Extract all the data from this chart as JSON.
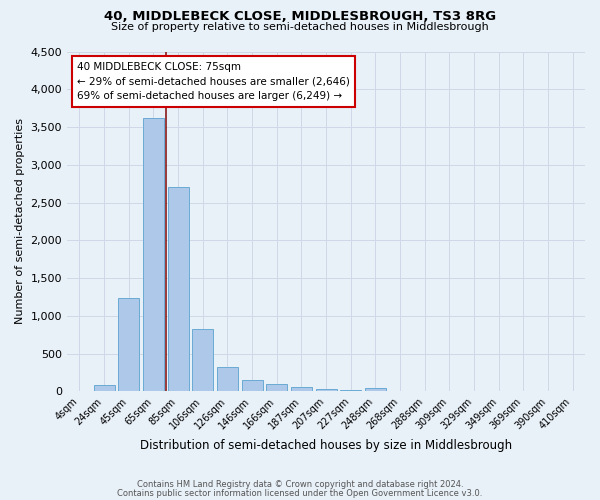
{
  "title1": "40, MIDDLEBECK CLOSE, MIDDLESBROUGH, TS3 8RG",
  "title2": "Size of property relative to semi-detached houses in Middlesbrough",
  "xlabel": "Distribution of semi-detached houses by size in Middlesbrough",
  "ylabel": "Number of semi-detached properties",
  "footnote1": "Contains HM Land Registry data © Crown copyright and database right 2024.",
  "footnote2": "Contains public sector information licensed under the Open Government Licence v3.0.",
  "bar_labels": [
    "4sqm",
    "24sqm",
    "45sqm",
    "65sqm",
    "85sqm",
    "106sqm",
    "126sqm",
    "146sqm",
    "166sqm",
    "187sqm",
    "207sqm",
    "227sqm",
    "248sqm",
    "268sqm",
    "288sqm",
    "309sqm",
    "329sqm",
    "349sqm",
    "369sqm",
    "390sqm",
    "410sqm"
  ],
  "bar_values": [
    0,
    90,
    1240,
    3620,
    2700,
    830,
    320,
    150,
    100,
    55,
    30,
    20,
    40,
    0,
    0,
    0,
    0,
    0,
    0,
    0,
    0
  ],
  "bar_color": "#adc8e8",
  "bar_edge_color": "#6aaad4",
  "background_color": "#e8f0f8",
  "grid_color": "#d0d8e8",
  "vline_x_index": 3.5,
  "vline_color": "#8b1a1a",
  "annotation_text": "40 MIDDLEBECK CLOSE: 75sqm\n← 29% of semi-detached houses are smaller (2,646)\n69% of semi-detached houses are larger (6,249) →",
  "annotation_box_color": "#ffffff",
  "annotation_box_edge": "#cc0000",
  "ylim": [
    0,
    4500
  ],
  "yticks": [
    0,
    500,
    1000,
    1500,
    2000,
    2500,
    3000,
    3500,
    4000,
    4500
  ],
  "title1_fontsize": 9.5,
  "title2_fontsize": 8.0
}
